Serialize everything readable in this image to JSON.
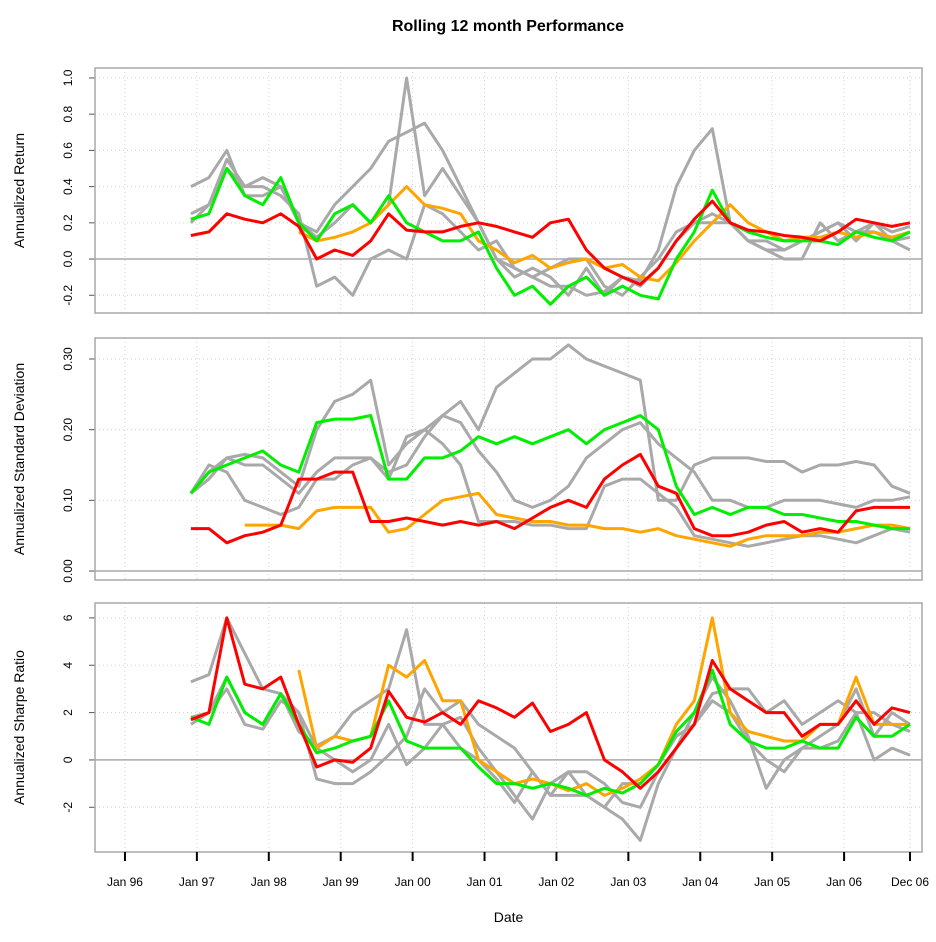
{
  "title": "Rolling 12 month Performance",
  "chart_data": [
    {
      "type": "line",
      "ylabel": "Annualized Return",
      "x": [
        "1996-12",
        "1997-03",
        "1997-06",
        "1997-09",
        "1997-12",
        "1998-03",
        "1998-06",
        "1998-09",
        "1998-12",
        "1999-03",
        "1999-06",
        "1999-09",
        "1999-12",
        "2000-03",
        "2000-06",
        "2000-09",
        "2000-12",
        "2001-03",
        "2001-06",
        "2001-09",
        "2001-12",
        "2002-03",
        "2002-06",
        "2002-09",
        "2002-12",
        "2003-03",
        "2003-06",
        "2003-09",
        "2003-12",
        "2004-03",
        "2004-06",
        "2004-09",
        "2004-12",
        "2005-03",
        "2005-06",
        "2005-09",
        "2005-12",
        "2006-03",
        "2006-06",
        "2006-09",
        "2006-12"
      ],
      "xlim": [
        "1995-08",
        "2007-02"
      ],
      "ylim": [
        -0.298,
        1.055
      ],
      "yticks": [
        -0.2,
        {
          "value": 0,
          "label": "0.0"
        },
        0.2,
        0.4,
        0.6,
        0.8,
        {
          "value": 1,
          "label": "1.0"
        }
      ],
      "grid": true,
      "series": [
        {
          "color": "#a9a9a9",
          "values": [
            0.4,
            0.45,
            0.6,
            0.35,
            0.35,
            0.4,
            0.2,
            0.15,
            0.3,
            0.4,
            0.5,
            0.65,
            0.7,
            0.75,
            0.6,
            0.4,
            0.2,
            0.0,
            -0.05,
            -0.1,
            -0.15,
            -0.15,
            -0.2,
            -0.18,
            -0.1,
            -0.12,
            0.05,
            0.4,
            0.6,
            0.72,
            0.2,
            0.1,
            0.05,
            0.05,
            0.1,
            0.15,
            0.2,
            0.15,
            0.15,
            0.1,
            0.05
          ]
        },
        {
          "color": "#a9a9a9",
          "values": [
            0.2,
            0.3,
            0.55,
            0.4,
            0.4,
            0.35,
            0.25,
            -0.15,
            -0.1,
            -0.2,
            0.0,
            0.05,
            0.0,
            0.3,
            0.25,
            0.15,
            0.05,
            0.1,
            -0.05,
            -0.1,
            -0.05,
            0.0,
            0.0,
            -0.15,
            -0.2,
            -0.1,
            0.0,
            0.15,
            0.2,
            0.2,
            0.2,
            0.1,
            0.05,
            0.0,
            0.0,
            0.2,
            0.1,
            0.15,
            0.2,
            0.1,
            0.12
          ]
        },
        {
          "color": "#a9a9a9",
          "values": [
            0.25,
            0.3,
            0.5,
            0.4,
            0.45,
            0.4,
            0.2,
            0.12,
            0.2,
            0.3,
            0.2,
            0.3,
            1.0,
            0.35,
            0.5,
            0.35,
            0.2,
            0.0,
            -0.1,
            -0.05,
            -0.1,
            -0.2,
            -0.05,
            -0.2,
            -0.1,
            -0.15,
            -0.05,
            0.1,
            0.2,
            0.25,
            0.2,
            0.1,
            0.1,
            0.05,
            0.1,
            0.15,
            0.2,
            0.1,
            0.2,
            0.15,
            0.18
          ]
        },
        {
          "color": "#ffa500",
          "values": [
            null,
            null,
            null,
            null,
            null,
            null,
            0.15,
            0.1,
            0.12,
            0.15,
            0.2,
            0.3,
            0.4,
            0.3,
            0.28,
            0.25,
            0.1,
            0.05,
            -0.02,
            0.02,
            -0.05,
            -0.02,
            0.0,
            -0.05,
            -0.03,
            -0.1,
            -0.12,
            -0.02,
            0.1,
            0.2,
            0.3,
            0.2,
            0.15,
            0.1,
            0.12,
            0.12,
            0.15,
            0.12,
            0.15,
            0.12,
            0.15
          ]
        },
        {
          "color": "#00ee00",
          "values": [
            0.22,
            0.25,
            0.5,
            0.35,
            0.3,
            0.45,
            0.2,
            0.1,
            0.25,
            0.3,
            0.2,
            0.35,
            0.2,
            0.15,
            0.1,
            0.1,
            0.15,
            -0.05,
            -0.2,
            -0.15,
            -0.25,
            -0.15,
            -0.1,
            -0.2,
            -0.15,
            -0.2,
            -0.22,
            0.0,
            0.15,
            0.38,
            0.2,
            0.15,
            0.12,
            0.1,
            0.1,
            0.1,
            0.08,
            0.15,
            0.12,
            0.1,
            0.15
          ]
        },
        {
          "color": "#ff0000",
          "values": [
            0.13,
            0.15,
            0.25,
            0.22,
            0.2,
            0.25,
            0.18,
            0.0,
            0.05,
            0.02,
            0.1,
            0.25,
            0.16,
            0.15,
            0.15,
            0.18,
            0.2,
            0.18,
            0.15,
            0.12,
            0.2,
            0.22,
            0.05,
            -0.05,
            -0.1,
            -0.14,
            -0.05,
            0.1,
            0.22,
            0.32,
            0.2,
            0.16,
            0.15,
            0.13,
            0.12,
            0.1,
            0.15,
            0.22,
            0.2,
            0.18,
            0.2
          ]
        }
      ]
    },
    {
      "type": "line",
      "ylabel": "Annualized Standard Deviation",
      "x": [
        "1996-12",
        "1997-03",
        "1997-06",
        "1997-09",
        "1997-12",
        "1998-03",
        "1998-06",
        "1998-09",
        "1998-12",
        "1999-03",
        "1999-06",
        "1999-09",
        "1999-12",
        "2000-03",
        "2000-06",
        "2000-09",
        "2000-12",
        "2001-03",
        "2001-06",
        "2001-09",
        "2001-12",
        "2002-03",
        "2002-06",
        "2002-09",
        "2002-12",
        "2003-03",
        "2003-06",
        "2003-09",
        "2003-12",
        "2004-03",
        "2004-06",
        "2004-09",
        "2004-12",
        "2005-03",
        "2005-06",
        "2005-09",
        "2005-12",
        "2006-03",
        "2006-06",
        "2006-09",
        "2006-12"
      ],
      "xlim": [
        "1995-08",
        "2007-02"
      ],
      "ylim": [
        -0.0127,
        0.3297
      ],
      "yticks": [
        {
          "value": 0,
          "label": "0.00"
        },
        {
          "value": 0.1,
          "label": "0.10"
        },
        {
          "value": 0.2,
          "label": "0.20"
        },
        {
          "value": 0.3,
          "label": "0.30"
        }
      ],
      "grid": true,
      "series": [
        {
          "color": "#a9a9a9",
          "values": [
            0.11,
            0.14,
            0.16,
            0.165,
            0.16,
            0.14,
            0.12,
            0.2,
            0.24,
            0.25,
            0.27,
            0.15,
            0.18,
            0.2,
            0.22,
            0.24,
            0.2,
            0.26,
            0.28,
            0.3,
            0.3,
            0.32,
            0.3,
            0.29,
            0.28,
            0.27,
            0.1,
            0.1,
            0.15,
            0.16,
            0.16,
            0.16,
            0.155,
            0.155,
            0.14,
            0.15,
            0.15,
            0.155,
            0.15,
            0.12,
            0.11
          ]
        },
        {
          "color": "#a9a9a9",
          "values": [
            0.11,
            0.13,
            0.16,
            0.15,
            0.15,
            0.13,
            0.11,
            0.14,
            0.16,
            0.16,
            0.16,
            0.14,
            0.15,
            0.19,
            0.22,
            0.21,
            0.17,
            0.14,
            0.1,
            0.09,
            0.1,
            0.12,
            0.16,
            0.18,
            0.2,
            0.21,
            0.18,
            0.16,
            0.14,
            0.1,
            0.1,
            0.09,
            0.09,
            0.1,
            0.1,
            0.1,
            0.095,
            0.09,
            0.1,
            0.1,
            0.105
          ]
        },
        {
          "color": "#a9a9a9",
          "values": [
            0.11,
            0.15,
            0.14,
            0.1,
            0.09,
            0.08,
            0.09,
            0.13,
            0.13,
            0.15,
            0.16,
            0.13,
            0.19,
            0.2,
            0.18,
            0.15,
            0.07,
            0.07,
            0.07,
            0.065,
            0.065,
            0.06,
            0.06,
            0.12,
            0.13,
            0.13,
            0.11,
            0.09,
            0.05,
            0.045,
            0.04,
            0.035,
            0.04,
            0.045,
            0.05,
            0.05,
            0.045,
            0.04,
            0.05,
            0.06,
            0.055
          ]
        },
        {
          "color": "#ffa500",
          "values": [
            null,
            null,
            null,
            0.065,
            0.065,
            0.065,
            0.06,
            0.085,
            0.09,
            0.09,
            0.09,
            0.055,
            0.06,
            0.08,
            0.1,
            0.105,
            0.11,
            0.08,
            0.075,
            0.07,
            0.07,
            0.065,
            0.065,
            0.06,
            0.06,
            0.055,
            0.06,
            0.05,
            0.045,
            0.04,
            0.035,
            0.045,
            0.05,
            0.05,
            0.05,
            0.055,
            0.055,
            0.06,
            0.065,
            0.065,
            0.06
          ]
        },
        {
          "color": "#00ee00",
          "values": [
            0.11,
            0.14,
            0.15,
            0.16,
            0.17,
            0.15,
            0.14,
            0.21,
            0.215,
            0.215,
            0.22,
            0.13,
            0.13,
            0.16,
            0.16,
            0.17,
            0.19,
            0.18,
            0.19,
            0.18,
            0.19,
            0.2,
            0.18,
            0.2,
            0.21,
            0.22,
            0.2,
            0.12,
            0.08,
            0.09,
            0.08,
            0.09,
            0.09,
            0.08,
            0.08,
            0.075,
            0.07,
            0.07,
            0.065,
            0.06,
            0.06
          ]
        },
        {
          "color": "#ff0000",
          "values": [
            0.06,
            0.06,
            0.04,
            0.05,
            0.055,
            0.065,
            0.13,
            0.13,
            0.14,
            0.14,
            0.07,
            0.07,
            0.075,
            0.07,
            0.065,
            0.07,
            0.065,
            0.07,
            0.06,
            0.075,
            0.09,
            0.1,
            0.09,
            0.13,
            0.15,
            0.165,
            0.12,
            0.11,
            0.06,
            0.05,
            0.05,
            0.055,
            0.065,
            0.07,
            0.055,
            0.06,
            0.055,
            0.085,
            0.09,
            0.09,
            0.09
          ]
        }
      ]
    },
    {
      "type": "line",
      "ylabel": "Annualized Sharpe Ratio",
      "xlabel": "Date",
      "x": [
        "1996-12",
        "1997-03",
        "1997-06",
        "1997-09",
        "1997-12",
        "1998-03",
        "1998-06",
        "1998-09",
        "1998-12",
        "1999-03",
        "1999-06",
        "1999-09",
        "1999-12",
        "2000-03",
        "2000-06",
        "2000-09",
        "2000-12",
        "2001-03",
        "2001-06",
        "2001-09",
        "2001-12",
        "2002-03",
        "2002-06",
        "2002-09",
        "2002-12",
        "2003-03",
        "2003-06",
        "2003-09",
        "2003-12",
        "2004-03",
        "2004-06",
        "2004-09",
        "2004-12",
        "2005-03",
        "2005-06",
        "2005-09",
        "2005-12",
        "2006-03",
        "2006-06",
        "2006-09",
        "2006-12"
      ],
      "xlim": [
        "1995-08",
        "2007-02"
      ],
      "xticks": [
        {
          "value": "1996-01",
          "label": "Jan 96"
        },
        {
          "value": "1997-01",
          "label": "Jan 97"
        },
        {
          "value": "1998-01",
          "label": "Jan 98"
        },
        {
          "value": "1999-01",
          "label": "Jan 99"
        },
        {
          "value": "2000-01",
          "label": "Jan 00"
        },
        {
          "value": "2001-01",
          "label": "Jan 01"
        },
        {
          "value": "2002-01",
          "label": "Jan 02"
        },
        {
          "value": "2003-01",
          "label": "Jan 03"
        },
        {
          "value": "2004-01",
          "label": "Jan 04"
        },
        {
          "value": "2005-01",
          "label": "Jan 05"
        },
        {
          "value": "2006-01",
          "label": "Jan 06"
        },
        {
          "value": "2006-12",
          "label": "Dec 06"
        }
      ],
      "ylim": [
        -3.89,
        6.63
      ],
      "yticks": [
        -2,
        0,
        2,
        4,
        6
      ],
      "grid": true,
      "series": [
        {
          "color": "#a9a9a9",
          "values": [
            3.3,
            3.6,
            6.0,
            4.5,
            3.0,
            2.8,
            2.0,
            -0.8,
            -1.0,
            -1.0,
            -0.5,
            0.2,
            1.0,
            3.0,
            2.0,
            2.5,
            1.5,
            1.0,
            0.5,
            -0.5,
            -1.5,
            -1.5,
            -1.5,
            -2.0,
            -2.5,
            -3.4,
            -1.0,
            0.5,
            1.5,
            2.8,
            3.0,
            3.0,
            2.0,
            2.5,
            1.5,
            2.0,
            2.5,
            2.0,
            2.0,
            1.5,
            1.2
          ]
        },
        {
          "color": "#a9a9a9",
          "values": [
            1.5,
            2.0,
            3.5,
            2.0,
            1.5,
            2.8,
            1.2,
            0.6,
            1.0,
            2.0,
            2.5,
            3.0,
            5.5,
            1.5,
            1.5,
            0.5,
            0.0,
            -0.8,
            -1.8,
            -0.5,
            -1.5,
            -0.5,
            -0.5,
            -1.0,
            -1.8,
            -2.0,
            -0.5,
            0.5,
            2.0,
            3.5,
            2.5,
            1.0,
            -1.2,
            0.0,
            0.5,
            1.0,
            1.5,
            3.0,
            1.0,
            2.0,
            1.5
          ]
        },
        {
          "color": "#a9a9a9",
          "values": [
            1.8,
            2.0,
            3.0,
            1.5,
            1.3,
            2.5,
            2.0,
            0.5,
            0.0,
            -0.5,
            0.0,
            1.5,
            -0.2,
            0.5,
            1.5,
            1.8,
            0.5,
            -0.5,
            -1.5,
            -2.5,
            -1.0,
            -0.5,
            -1.5,
            -2.0,
            -1.0,
            -1.0,
            -0.2,
            1.0,
            1.5,
            2.5,
            2.0,
            0.8,
            0.0,
            -0.5,
            0.5,
            0.5,
            0.8,
            2.0,
            0.0,
            0.5,
            0.2
          ]
        },
        {
          "color": "#ffa500",
          "values": [
            null,
            null,
            null,
            null,
            null,
            null,
            3.8,
            0.5,
            1.0,
            0.8,
            1.0,
            4.0,
            3.5,
            4.2,
            2.5,
            2.5,
            0.0,
            -0.5,
            -1.0,
            -0.8,
            -1.0,
            -1.3,
            -1.0,
            -1.5,
            -1.2,
            -0.8,
            -0.2,
            1.5,
            2.5,
            6.0,
            2.0,
            1.2,
            1.0,
            0.8,
            0.8,
            1.5,
            1.5,
            3.5,
            1.5,
            1.5,
            1.5
          ]
        },
        {
          "color": "#00ee00",
          "values": [
            1.8,
            1.5,
            3.5,
            2.0,
            1.5,
            2.8,
            1.5,
            0.3,
            0.5,
            0.8,
            1.0,
            2.5,
            0.8,
            0.5,
            0.5,
            0.5,
            -0.3,
            -1.0,
            -1.0,
            -1.2,
            -1.0,
            -1.2,
            -1.5,
            -1.2,
            -1.4,
            -1.0,
            -0.2,
            1.2,
            2.0,
            3.8,
            1.5,
            0.8,
            0.5,
            0.5,
            0.8,
            0.5,
            0.5,
            1.8,
            1.0,
            1.0,
            1.5
          ]
        },
        {
          "color": "#ff0000",
          "values": [
            1.7,
            2.0,
            6.0,
            3.2,
            3.0,
            3.5,
            1.5,
            -0.3,
            0.0,
            -0.1,
            0.5,
            2.9,
            1.8,
            1.6,
            2.0,
            1.5,
            2.5,
            2.2,
            1.8,
            2.4,
            1.2,
            1.5,
            2.0,
            0.0,
            -0.5,
            -1.2,
            -0.5,
            0.5,
            1.5,
            4.2,
            3.0,
            2.5,
            2.0,
            2.0,
            1.0,
            1.5,
            1.5,
            2.5,
            1.5,
            2.2,
            2.0
          ]
        }
      ]
    }
  ]
}
